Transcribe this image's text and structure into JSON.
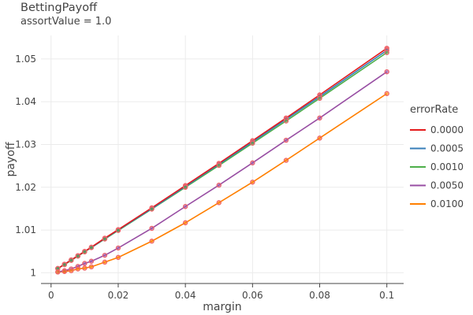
{
  "chart_data": {
    "type": "line",
    "title": "BettingPayoff",
    "subtitle": "assortValue = 1.0",
    "xlabel": "margin",
    "ylabel": "payoff",
    "xlim": [
      -0.003,
      0.105
    ],
    "ylim": [
      0.9975,
      1.0555
    ],
    "xticks": [
      0,
      0.02,
      0.04,
      0.06,
      0.08,
      0.1
    ],
    "xtick_labels": [
      "0",
      "0.02",
      "0.04",
      "0.06",
      "0.08",
      "0.1"
    ],
    "yticks": [
      1,
      1.01,
      1.02,
      1.03,
      1.04,
      1.05
    ],
    "ytick_labels": [
      "1",
      "1.01",
      "1.02",
      "1.03",
      "1.04",
      "1.05"
    ],
    "grid": true,
    "legend_title": "errorRate",
    "legend_position": "right",
    "marker_color": "#f0636b",
    "x": [
      0.002,
      0.004,
      0.006,
      0.008,
      0.01,
      0.012,
      0.016,
      0.02,
      0.03,
      0.04,
      0.05,
      0.06,
      0.07,
      0.08,
      0.1
    ],
    "series": [
      {
        "name": "0.0000",
        "color": "#e41a1c",
        "values": [
          1.001,
          1.002,
          1.003,
          1.004,
          1.005,
          1.006,
          1.0081,
          1.0101,
          1.0152,
          1.0204,
          1.0256,
          1.0309,
          1.0362,
          1.0416,
          1.0525
        ]
      },
      {
        "name": "0.0005",
        "color": "#377eb8",
        "values": [
          1.001,
          1.002,
          1.003,
          1.004,
          1.005,
          1.0059,
          1.008,
          1.01,
          1.015,
          1.0202,
          1.0254,
          1.0306,
          1.0359,
          1.0412,
          1.052
        ]
      },
      {
        "name": "0.0010",
        "color": "#4daf4a",
        "values": [
          1.001,
          1.0019,
          1.0029,
          1.0039,
          1.0049,
          1.0059,
          1.0079,
          1.0099,
          1.0149,
          1.02,
          1.0251,
          1.0303,
          1.0355,
          1.0408,
          1.0515
        ]
      },
      {
        "name": "0.0050",
        "color": "#984ea3",
        "values": [
          1.0002,
          1.0005,
          1.0009,
          1.0015,
          1.0022,
          1.0027,
          1.0041,
          1.0058,
          1.0104,
          1.0155,
          1.0205,
          1.0257,
          1.031,
          1.0362,
          1.047
        ]
      },
      {
        "name": "0.0100",
        "color": "#ff7f00",
        "values": [
          1.0002,
          1.0003,
          1.0005,
          1.0009,
          1.0011,
          1.0014,
          1.0025,
          1.0036,
          1.0074,
          1.0117,
          1.0164,
          1.0212,
          1.0263,
          1.0315,
          1.0419
        ]
      }
    ]
  }
}
